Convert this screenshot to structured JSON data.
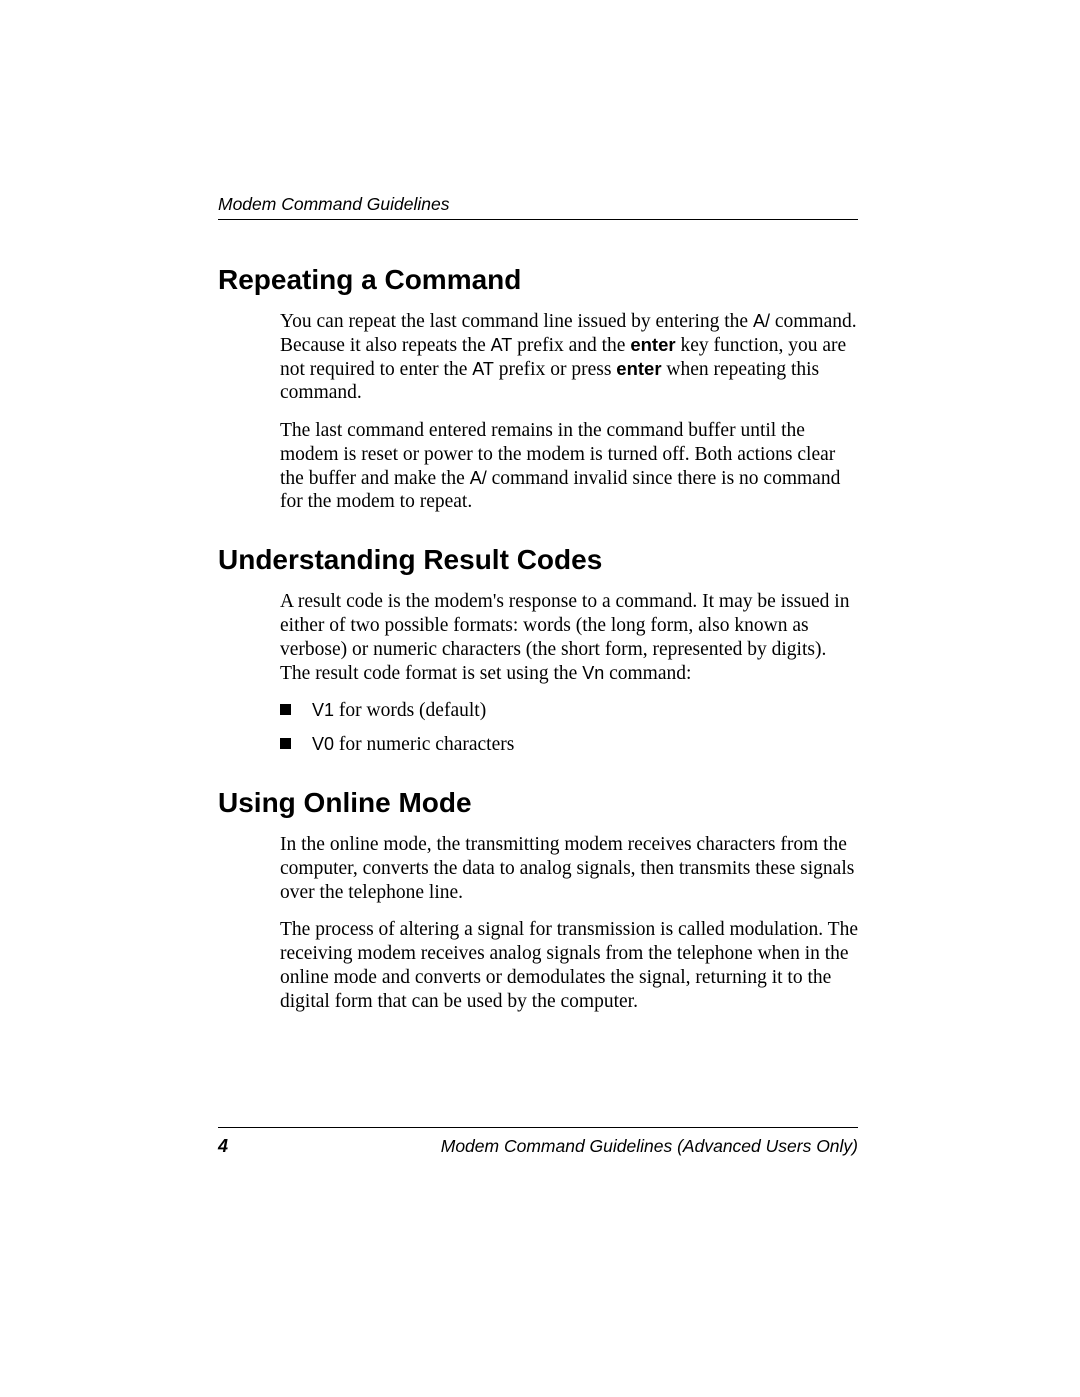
{
  "header": {
    "title": "Modem Command Guidelines"
  },
  "sections": [
    {
      "heading": "Repeating a Command",
      "paragraphs": [
        {
          "runs": [
            {
              "t": "You can repeat the last command line issued by entering the "
            },
            {
              "t": "A/",
              "cls": "sans"
            },
            {
              "t": " command. Because it also repeats the "
            },
            {
              "t": "AT",
              "cls": "sans"
            },
            {
              "t": " prefix and the "
            },
            {
              "t": "enter",
              "cls": "bold-sans"
            },
            {
              "t": " key function, you are not required to enter the "
            },
            {
              "t": "AT",
              "cls": "sans"
            },
            {
              "t": " prefix or press "
            },
            {
              "t": "enter",
              "cls": "bold-sans"
            },
            {
              "t": " when repeating this command."
            }
          ]
        },
        {
          "runs": [
            {
              "t": "The last command entered remains in the command buffer until the modem is reset or power to the modem is turned off. Both actions clear the buffer and make the "
            },
            {
              "t": "A/",
              "cls": "sans"
            },
            {
              "t": " command invalid since there is no command for the modem to repeat."
            }
          ]
        }
      ]
    },
    {
      "heading": "Understanding Result Codes",
      "paragraphs": [
        {
          "runs": [
            {
              "t": "A result code is the modem's response to a command. It may be issued in either of two possible formats: words (the long form, also known as verbose) or numeric characters (the short form, represented by digits). The result code format is set using the "
            },
            {
              "t": "Vn",
              "cls": "sans"
            },
            {
              "t": " command:"
            }
          ]
        }
      ],
      "bullets": [
        {
          "runs": [
            {
              "t": "V1",
              "cls": "sans"
            },
            {
              "t": " for words (default)"
            }
          ]
        },
        {
          "runs": [
            {
              "t": "V0",
              "cls": "sans"
            },
            {
              "t": " for numeric characters"
            }
          ]
        }
      ]
    },
    {
      "heading": "Using Online Mode",
      "paragraphs": [
        {
          "runs": [
            {
              "t": "In the online mode, the transmitting modem receives characters from the computer, converts the data to analog signals, then transmits these signals over the telephone line."
            }
          ]
        },
        {
          "runs": [
            {
              "t": "The process of altering a signal for transmission is called modulation. The receiving modem receives analog signals from the telephone when in the online mode and converts or demodulates the signal, returning it to the digital form that can be used by the computer."
            }
          ]
        }
      ]
    }
  ],
  "footer": {
    "page_number": "4",
    "title": "Modem Command Guidelines (Advanced Users Only)"
  },
  "style": {
    "page_bg": "#ffffff",
    "text_color": "#000000",
    "rule_color": "#000000",
    "heading_font": "Arial",
    "body_font": "Times New Roman",
    "heading_fontsize_pt": 21,
    "body_fontsize_pt": 14.5,
    "header_fontsize_pt": 13,
    "bullet_marker": "square"
  }
}
